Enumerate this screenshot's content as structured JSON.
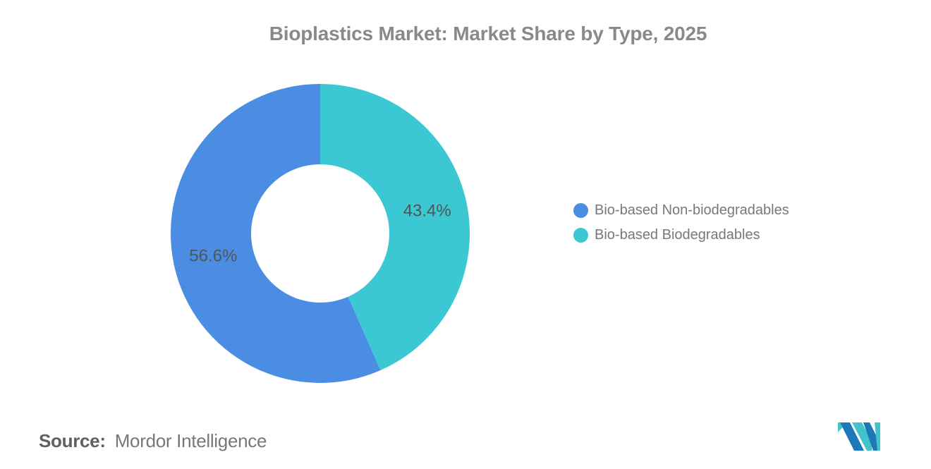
{
  "header": {
    "title": "Bioplastics Market: Market Share by Type, 2025"
  },
  "chart_data": {
    "type": "pie",
    "subtype": "donut",
    "title": "Bioplastics Market: Market Share by Type, 2025",
    "categories": [
      "Bio-based Non-biodegradables",
      "Bio-based Biodegradables"
    ],
    "values": [
      56.6,
      43.4
    ],
    "unit": "%",
    "data_labels": [
      "56.6%",
      "43.4%"
    ],
    "colors": [
      "#4A8DE2",
      "#3CC8D3"
    ],
    "label_color": "#515558",
    "legend_position": "right",
    "draw_order": [
      1,
      0
    ],
    "start_angle_deg": 0,
    "direction": "clockwise",
    "inner_radius_ratio": 0.46
  },
  "legend": {
    "items": [
      {
        "label": "Bio-based Non-biodegradables",
        "color": "#4A8DE2"
      },
      {
        "label": "Bio-based Biodegradables",
        "color": "#3CC8D3"
      }
    ]
  },
  "footer": {
    "source_label": "Source:",
    "source_value": "Mordor Intelligence"
  },
  "logo": {
    "name": "Mordor Intelligence",
    "colors": {
      "blue": "#1E78B8",
      "teal": "#43C3CB"
    }
  }
}
